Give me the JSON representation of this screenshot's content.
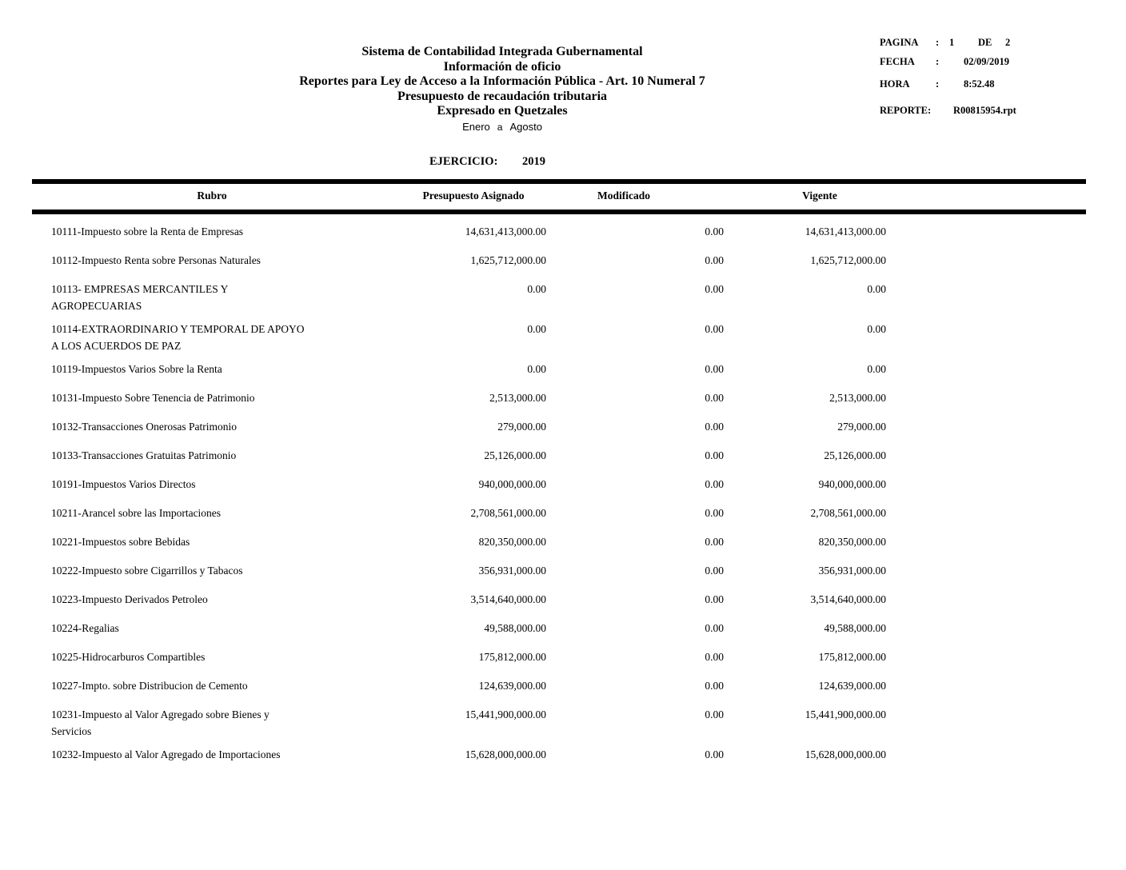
{
  "page": {
    "title_lines": [
      "Sistema de Contabilidad Integrada Gubernamental",
      "Información de oficio",
      "Reportes para Ley de Acceso a la Información Pública - Art. 10 Numeral 7",
      "Presupuesto de recaudación tributaria",
      "Expresado en Quetzales"
    ],
    "period": {
      "from": "Enero",
      "connector": "a",
      "to": "Agosto"
    },
    "ejercicio_label": "EJERCICIO:",
    "ejercicio_value": "2019"
  },
  "meta": {
    "colon": ":",
    "pagina": {
      "label": "PAGINA",
      "value": "1",
      "de": "DE",
      "total": "2"
    },
    "fecha": {
      "label": "FECHA",
      "value": "02/09/2019"
    },
    "hora": {
      "label": "HORA",
      "value": "8:52.48"
    },
    "reporte": {
      "label": "REPORTE:",
      "value": "R00815954.rpt"
    }
  },
  "table": {
    "headers": {
      "rubro": "Rubro",
      "asignado": "Presupuesto Asignado",
      "modificado": "Modificado",
      "vigente": "Vigente"
    },
    "rows": [
      {
        "label_lines": [
          "10111-Impuesto sobre la Renta de Empresas"
        ],
        "asignado": "14,631,413,000.00",
        "modificado": "0.00",
        "vigente": "14,631,413,000.00"
      },
      {
        "label_lines": [
          "10112-Impuesto Renta sobre Personas Naturales"
        ],
        "asignado": "1,625,712,000.00",
        "modificado": "0.00",
        "vigente": "1,625,712,000.00"
      },
      {
        "label_lines": [
          "10113- EMPRESAS MERCANTILES Y",
          "AGROPECUARIAS"
        ],
        "asignado": "0.00",
        "modificado": "0.00",
        "vigente": "0.00"
      },
      {
        "label_lines": [
          "10114-EXTRAORDINARIO Y TEMPORAL DE APOYO",
          "A LOS ACUERDOS DE PAZ"
        ],
        "asignado": "0.00",
        "modificado": "0.00",
        "vigente": "0.00"
      },
      {
        "label_lines": [
          "10119-Impuestos Varios Sobre la Renta"
        ],
        "asignado": "0.00",
        "modificado": "0.00",
        "vigente": "0.00"
      },
      {
        "label_lines": [
          "10131-Impuesto Sobre Tenencia de Patrimonio"
        ],
        "asignado": "2,513,000.00",
        "modificado": "0.00",
        "vigente": "2,513,000.00"
      },
      {
        "label_lines": [
          "10132-Transacciones Onerosas Patrimonio"
        ],
        "asignado": "279,000.00",
        "modificado": "0.00",
        "vigente": "279,000.00"
      },
      {
        "label_lines": [
          "10133-Transacciones Gratuitas Patrimonio"
        ],
        "asignado": "25,126,000.00",
        "modificado": "0.00",
        "vigente": "25,126,000.00"
      },
      {
        "label_lines": [
          "10191-Impuestos Varios Directos"
        ],
        "asignado": "940,000,000.00",
        "modificado": "0.00",
        "vigente": "940,000,000.00"
      },
      {
        "label_lines": [
          "10211-Arancel sobre las Importaciones"
        ],
        "asignado": "2,708,561,000.00",
        "modificado": "0.00",
        "vigente": "2,708,561,000.00"
      },
      {
        "label_lines": [
          "10221-Impuestos sobre Bebidas"
        ],
        "asignado": "820,350,000.00",
        "modificado": "0.00",
        "vigente": "820,350,000.00"
      },
      {
        "label_lines": [
          "10222-Impuesto sobre Cigarrillos y Tabacos"
        ],
        "asignado": "356,931,000.00",
        "modificado": "0.00",
        "vigente": "356,931,000.00"
      },
      {
        "label_lines": [
          "10223-Impuesto Derivados Petroleo"
        ],
        "asignado": "3,514,640,000.00",
        "modificado": "0.00",
        "vigente": "3,514,640,000.00"
      },
      {
        "label_lines": [
          "10224-Regalias"
        ],
        "asignado": "49,588,000.00",
        "modificado": "0.00",
        "vigente": "49,588,000.00"
      },
      {
        "label_lines": [
          "10225-Hidrocarburos Compartibles"
        ],
        "asignado": "175,812,000.00",
        "modificado": "0.00",
        "vigente": "175,812,000.00"
      },
      {
        "label_lines": [
          "10227-Impto. sobre Distribucion de Cemento"
        ],
        "asignado": "124,639,000.00",
        "modificado": "0.00",
        "vigente": "124,639,000.00"
      },
      {
        "label_lines": [
          "10231-Impuesto al Valor Agregado sobre Bienes y",
          "Servicios"
        ],
        "asignado": "15,441,900,000.00",
        "modificado": "0.00",
        "vigente": "15,441,900,000.00"
      },
      {
        "label_lines": [
          "10232-Impuesto al Valor Agregado de Importaciones"
        ],
        "asignado": "15,628,000,000.00",
        "modificado": "0.00",
        "vigente": "15,628,000,000.00"
      }
    ]
  }
}
